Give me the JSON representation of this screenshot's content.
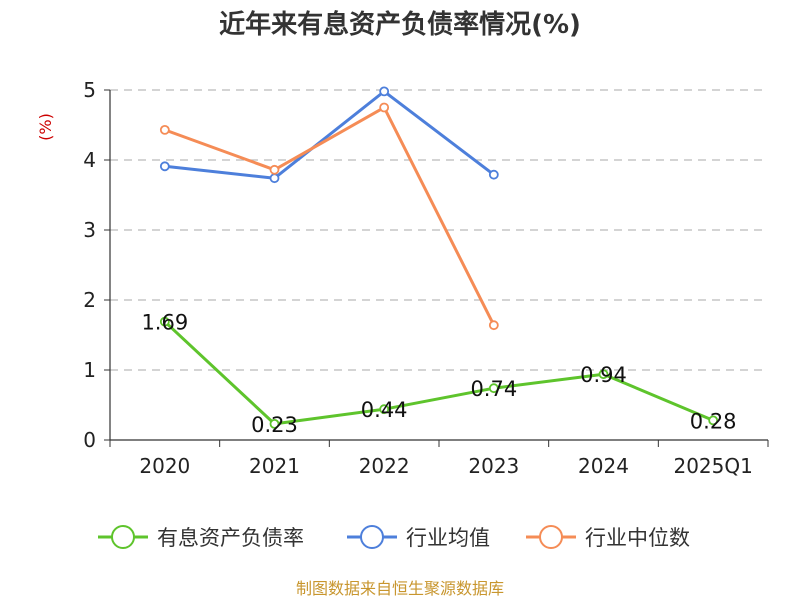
{
  "chart_data": {
    "type": "line",
    "title": "近年来有息资产负债率情况(%)",
    "ylabel": "(%)",
    "categories": [
      "2020",
      "2021",
      "2022",
      "2023",
      "2024",
      "2025Q1"
    ],
    "ylim": [
      0,
      5
    ],
    "yticks": [
      "0",
      "1",
      "2",
      "3",
      "4",
      "5"
    ],
    "grid": true,
    "legend_position": "bottom",
    "series": [
      {
        "name": "有息资产负债率",
        "color": "#5ec42c",
        "values": [
          1.69,
          0.23,
          0.44,
          0.74,
          0.94,
          0.28
        ],
        "labels": [
          "1.69",
          "0.23",
          "0.44",
          "0.74",
          "0.94",
          "0.28"
        ]
      },
      {
        "name": "行业均值",
        "color": "#4d7fdb",
        "values": [
          3.91,
          3.74,
          4.98,
          3.79,
          null,
          null
        ]
      },
      {
        "name": "行业中位数",
        "color": "#f58c56",
        "values": [
          4.43,
          3.86,
          4.75,
          1.64,
          null,
          null
        ]
      }
    ]
  },
  "source": "制图数据来自恒生聚源数据库"
}
